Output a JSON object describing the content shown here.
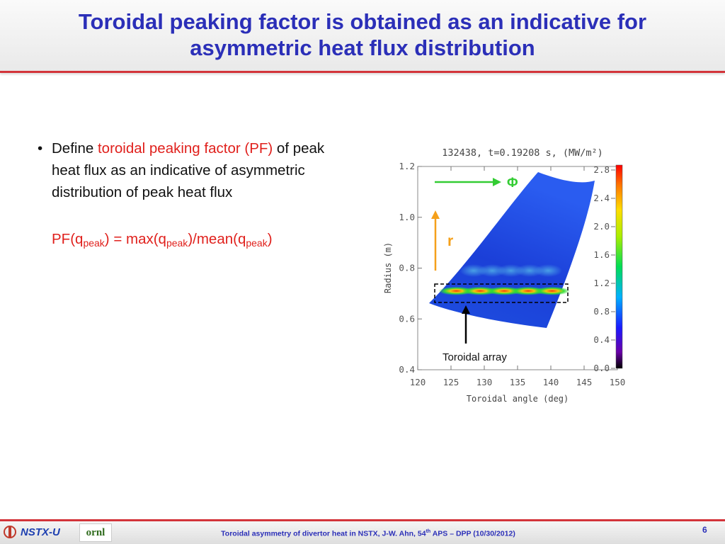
{
  "slide": {
    "title_line1": "Toroidal peaking factor is obtained as an indicative for",
    "title_line2": "asymmetric heat flux distribution",
    "bullet": {
      "marker": "•",
      "text_before": "Define ",
      "highlight": "toroidal peaking factor (PF)",
      "text_after": " of peak heat flux as an indicative of asymmetric distribution of peak heat flux"
    },
    "formula": {
      "p1": "PF(q",
      "s1": "peak",
      "p2": ") = max(q",
      "s2": "peak",
      "p3": ")/mean(q",
      "s3": "peak",
      "p4": ")"
    },
    "colors": {
      "title": "#2b2fb8",
      "accent_red": "#e0201c",
      "rule": "#d3343a"
    }
  },
  "footer": {
    "logo_left": "NSTX-U",
    "logo_right": "ornl",
    "text_main": "Toroidal asymmetry of divertor heat in NSTX, J-W. Ahn, 54",
    "text_sup": "th",
    "text_end": " APS – DPP (10/30/2012)",
    "page_number": "6"
  },
  "chart_data": {
    "type": "heatmap",
    "title": "132438,  t=0.19208  s,  (MW/m²)",
    "xlabel": "Toroidal angle (deg)",
    "ylabel": "Radius (m)",
    "xlim": [
      120,
      150
    ],
    "ylim": [
      0.4,
      1.2
    ],
    "xticks": [
      "120",
      "125",
      "130",
      "135",
      "140",
      "145",
      "150"
    ],
    "yticks": [
      "0.4",
      "0.6",
      "0.8",
      "1.0",
      "1.2"
    ],
    "colorbar": {
      "range": [
        0.0,
        2.8
      ],
      "ticks": [
        "0.0",
        "0.4",
        "0.8",
        "1.2",
        "1.6",
        "2.0",
        "2.4",
        "2.8"
      ]
    },
    "background_heat_flux": 0.4,
    "hot_bands": [
      {
        "radius": 0.71,
        "toroidal_range": [
          124,
          142
        ],
        "peak_value": 2.6
      },
      {
        "radius": 0.79,
        "toroidal_range": [
          127,
          141
        ],
        "peak_value": 0.8
      }
    ],
    "annotations": {
      "phi_label": "Φ",
      "r_label": "r",
      "array_label": "Toroidal array"
    },
    "annotation_colors": {
      "phi_arrow": "#33cc33",
      "r_arrow": "#f5a01a",
      "array_arrow": "#000000"
    }
  }
}
